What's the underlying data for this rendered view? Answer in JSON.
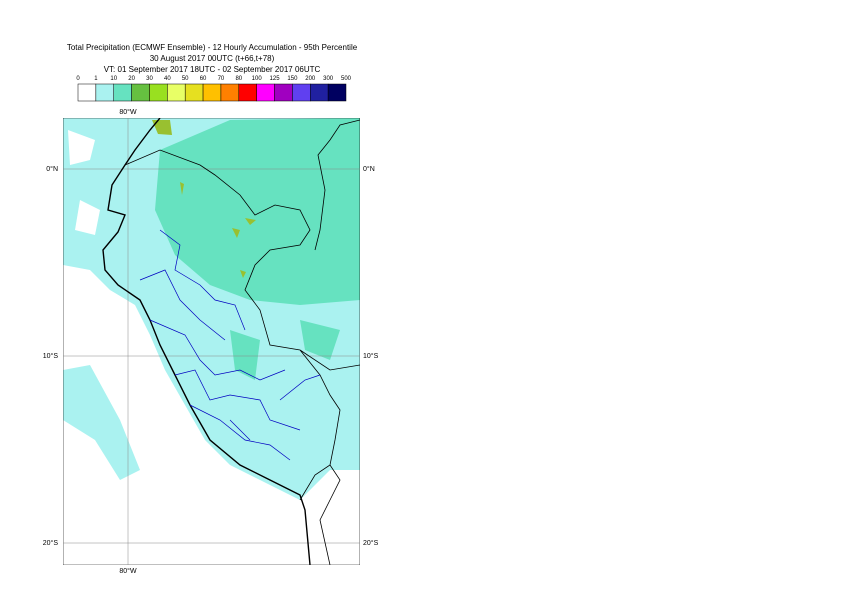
{
  "header": {
    "title": "Total Precipitation (ECMWF Ensemble) - 12 Hourly Accumulation - 95th Percentile",
    "base_time": "30 August 2017 00UTC (t+66,t+78)",
    "valid_time": "VT: 01 September 2017 18UTC - 02 September 2017 06UTC"
  },
  "legend": {
    "bounds": [
      0,
      1,
      10,
      20,
      30,
      40,
      50,
      60,
      70,
      80,
      100,
      125,
      150,
      200,
      300,
      500
    ],
    "colors": [
      "#ffffff",
      "#aaf2f0",
      "#66e2c0",
      "#66c040",
      "#99e020",
      "#e8ff66",
      "#e6e020",
      "#ffc000",
      "#ff8000",
      "#ff0000",
      "#ff00ff",
      "#a000c0",
      "#6040f0",
      "#2020a0",
      "#000060"
    ]
  },
  "map": {
    "lat_labels": [
      "0°N",
      "10°S",
      "20°S"
    ],
    "lon_label": "80°W"
  }
}
